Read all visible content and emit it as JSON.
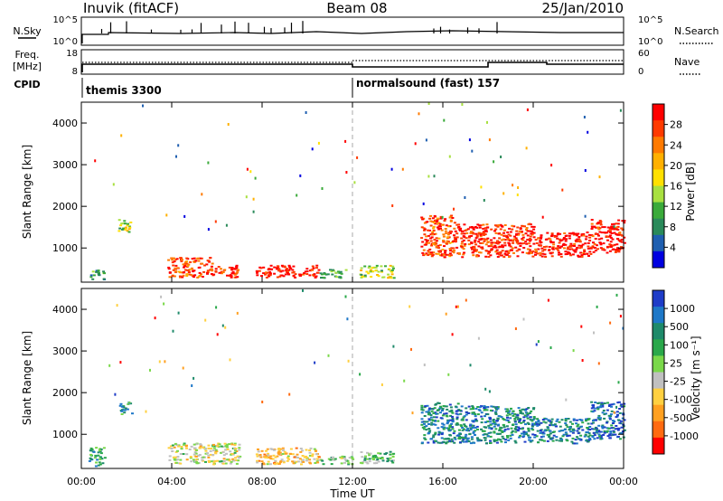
{
  "header": {
    "station": "Inuvik (fitACF)",
    "beam": "Beam 08",
    "date": "25/Jan/2010"
  },
  "nsky_panel": {
    "label": "N.Sky",
    "right_label": "N.Search",
    "ticks_left": [
      "10^5",
      "10^0"
    ],
    "ticks_right": [
      "10^5",
      "10^0"
    ]
  },
  "freq_panel": {
    "label_line1": "Freq.",
    "label_line2": "[MHz]",
    "right_label": "Nave",
    "ticks_left": [
      "18",
      "8"
    ],
    "ticks_right": [
      "60",
      "0"
    ]
  },
  "cpid_panel": {
    "label": "CPID",
    "modes": [
      {
        "name": "themis 3300"
      },
      {
        "name": "normalsound (fast) 157"
      }
    ]
  },
  "chart_data": [
    {
      "type": "heatmap",
      "panel": "power",
      "ylabel": "Slant Range [km]",
      "ylim": [
        180,
        4500
      ],
      "y_ticks": [
        "1000",
        "2000",
        "3000",
        "4000"
      ],
      "colorbar_label": "Power [dB]",
      "colorbar_ticks": [
        "28",
        "24",
        "20",
        "16",
        "12",
        "8",
        "4"
      ],
      "colorbar_colors": [
        "#ff0000",
        "#ff3a00",
        "#ff7a00",
        "#ffb000",
        "#ffe000",
        "#a8e040",
        "#3aaa3a",
        "#2a8a5a",
        "#1f5fb0",
        "#0000e0"
      ],
      "regions": [
        {
          "x": [
            0.3,
            1.0
          ],
          "y": [
            250,
            500
          ],
          "level": 0.3
        },
        {
          "x": [
            1.6,
            2.2
          ],
          "y": [
            1400,
            1700
          ],
          "level": 0.45
        },
        {
          "x": [
            3.8,
            5.8
          ],
          "y": [
            300,
            800
          ],
          "level": 0.85
        },
        {
          "x": [
            5.8,
            6.9
          ],
          "y": [
            300,
            600
          ],
          "level": 0.9
        },
        {
          "x": [
            7.7,
            10.5
          ],
          "y": [
            300,
            600
          ],
          "level": 0.95
        },
        {
          "x": [
            10.5,
            11.7
          ],
          "y": [
            300,
            500
          ],
          "level": 0.35
        },
        {
          "x": [
            12.3,
            13.8
          ],
          "y": [
            300,
            600
          ],
          "level": 0.45
        },
        {
          "x": [
            15.0,
            16.5
          ],
          "y": [
            800,
            1800
          ],
          "level": 0.85
        },
        {
          "x": [
            16.5,
            20.0
          ],
          "y": [
            800,
            1600
          ],
          "level": 0.9
        },
        {
          "x": [
            20.0,
            22.5
          ],
          "y": [
            800,
            1400
          ],
          "level": 0.95
        },
        {
          "x": [
            22.5,
            24.0
          ],
          "y": [
            900,
            1700
          ],
          "level": 0.95
        }
      ]
    },
    {
      "type": "heatmap",
      "panel": "velocity",
      "ylabel": "Slant Range [km]",
      "ylim": [
        180,
        4500
      ],
      "y_ticks": [
        "1000",
        "2000",
        "3000",
        "4000"
      ],
      "colorbar_label": "Velocity [m s⁻¹]",
      "colorbar_ticks": [
        "1000",
        "500",
        "100",
        "25",
        "-25",
        "-100",
        "-500",
        "-1000"
      ],
      "colorbar_colors": [
        "#1e3cc8",
        "#1e78c8",
        "#1e8a6a",
        "#2aa84a",
        "#7ad84a",
        "#c0c0c0",
        "#ffd040",
        "#ffa020",
        "#ff6a10",
        "#ff0000"
      ],
      "regions": [
        {
          "x": [
            0.3,
            1.0
          ],
          "y": [
            250,
            700
          ],
          "level": 0.7
        },
        {
          "x": [
            1.6,
            2.2
          ],
          "y": [
            1500,
            1800
          ],
          "level": 0.75
        },
        {
          "x": [
            3.8,
            7.0
          ],
          "y": [
            300,
            800
          ],
          "level": 0.45
        },
        {
          "x": [
            7.7,
            10.5
          ],
          "y": [
            300,
            700
          ],
          "level": 0.35
        },
        {
          "x": [
            10.5,
            12.0
          ],
          "y": [
            300,
            500
          ],
          "level": 0.55
        },
        {
          "x": [
            12.3,
            13.8
          ],
          "y": [
            300,
            600
          ],
          "level": 0.6
        },
        {
          "x": [
            15.0,
            16.8
          ],
          "y": [
            800,
            1800
          ],
          "level": 0.8
        },
        {
          "x": [
            16.8,
            20.0
          ],
          "y": [
            800,
            1700
          ],
          "level": 0.78
        },
        {
          "x": [
            20.0,
            22.5
          ],
          "y": [
            800,
            1400
          ],
          "level": 0.8
        },
        {
          "x": [
            22.5,
            24.0
          ],
          "y": [
            900,
            1800
          ],
          "level": 0.85
        }
      ]
    }
  ],
  "xaxis": {
    "label": "Time UT",
    "xlim": [
      0,
      24
    ],
    "tick_labels": [
      "00:00",
      "04:00",
      "08:00",
      "12:00",
      "16:00",
      "20:00",
      "00:00"
    ]
  }
}
